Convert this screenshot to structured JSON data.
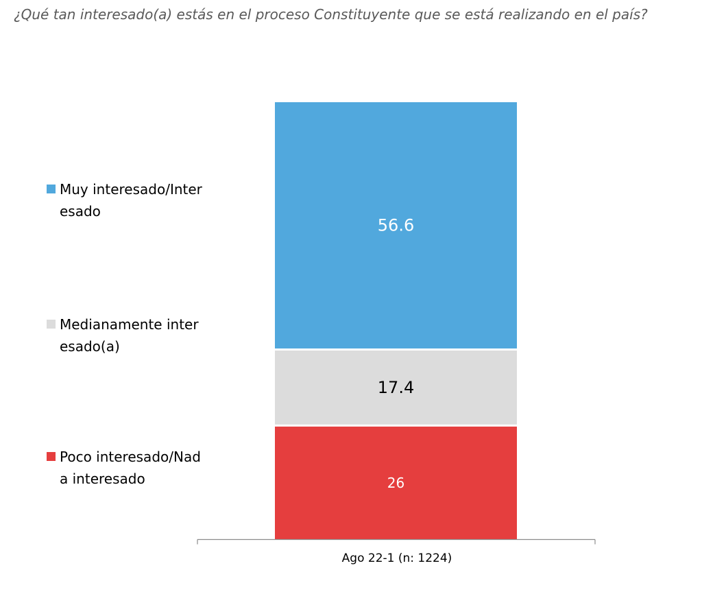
{
  "question": "¿Qué tan interesado(a) estás en el proceso Constituyente que se está realizando en el país?",
  "colors": {
    "muy_interesado": "#51A8DD",
    "medianamente": "#DCDCDC",
    "poco_nada": "#E53E3E"
  },
  "chart_data": {
    "type": "bar",
    "stacked": true,
    "categories": [
      "Ago 22-1 (n: 1224)"
    ],
    "series": [
      {
        "name": "Poco interesado/Nada interesado",
        "values": [
          26
        ],
        "color": "#E53E3E",
        "label_color": "#FFFFFF"
      },
      {
        "name": "Medianamente interesado(a)",
        "values": [
          17.4
        ],
        "color": "#DCDCDC",
        "label_color": "#000000"
      },
      {
        "name": "Muy interesado/Interesado",
        "values": [
          56.6
        ],
        "color": "#51A8DD",
        "label_color": "#FFFFFF"
      }
    ],
    "data_labels": [
      "26",
      "17.4",
      "56.6"
    ],
    "ylim": [
      0,
      100
    ],
    "legend_placement": "left",
    "grid": false,
    "title": "",
    "xlabel": "",
    "ylabel": ""
  },
  "legend": [
    {
      "label": "Muy interesado/Interesado",
      "color": "#51A8DD"
    },
    {
      "label": "Medianamente interesado(a)",
      "color": "#DCDCDC"
    },
    {
      "label": "Poco interesado/Nada interesado",
      "color": "#E53E3E"
    }
  ]
}
